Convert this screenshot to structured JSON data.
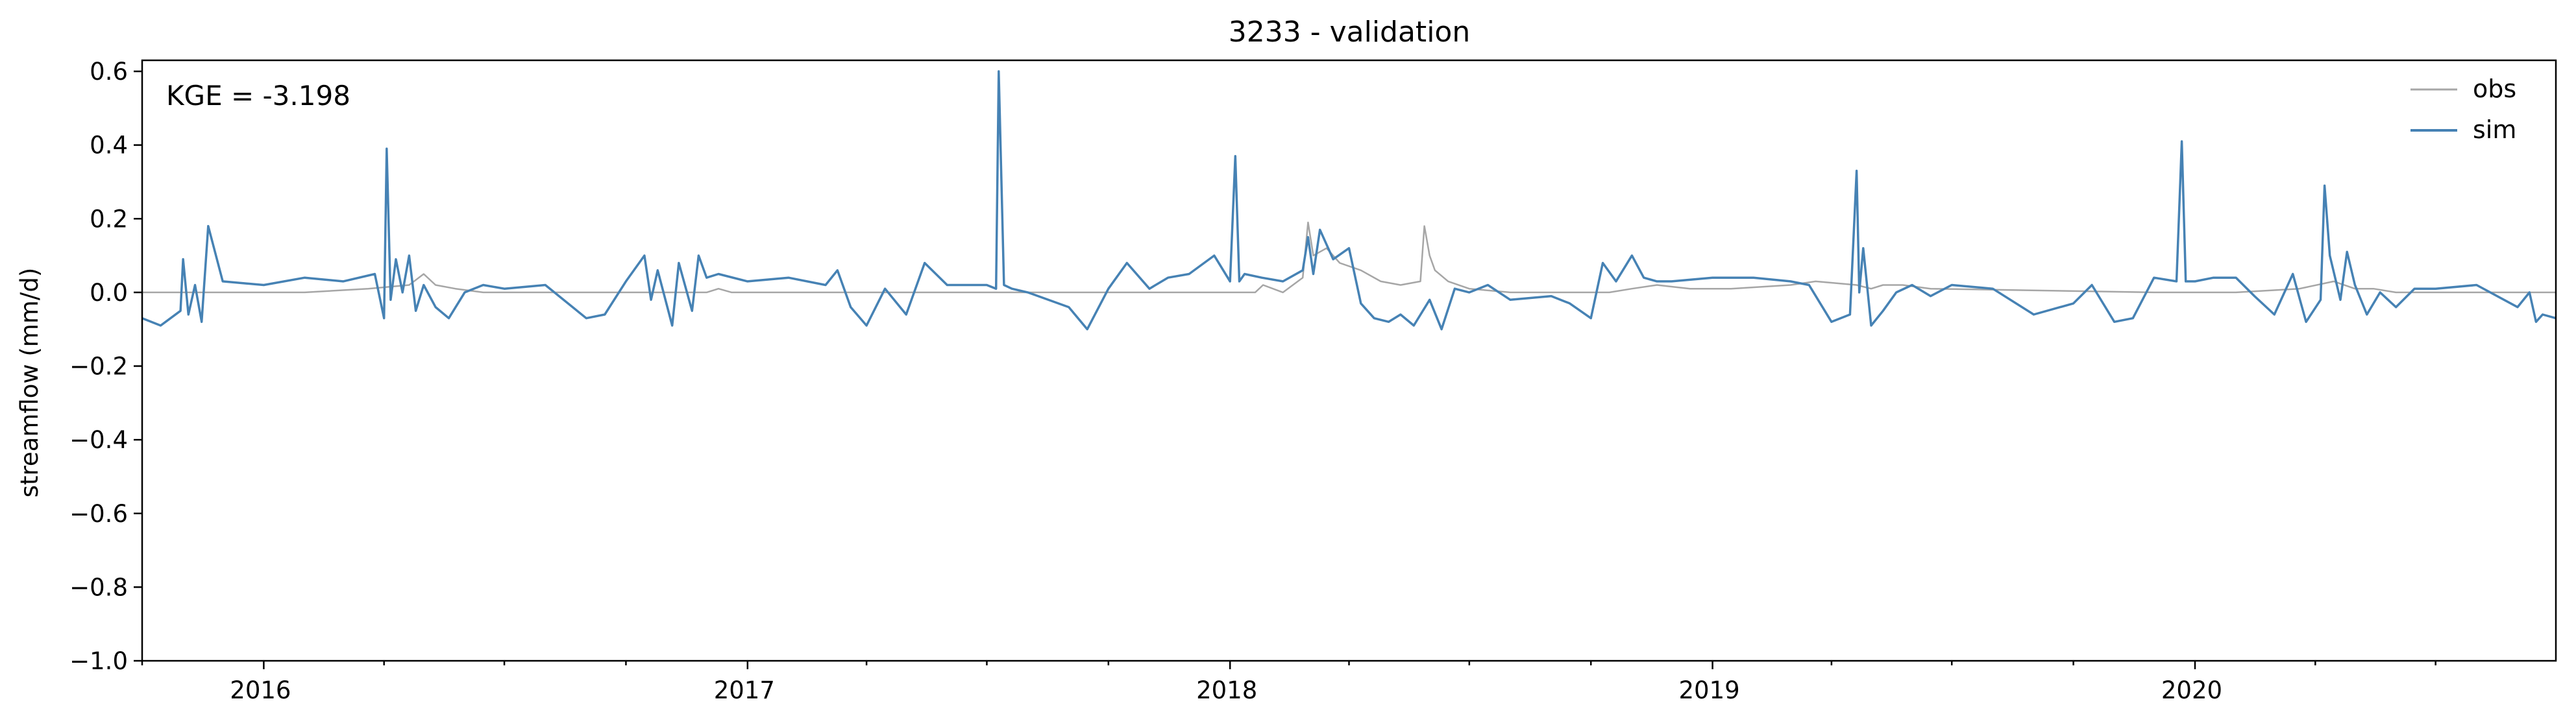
{
  "chart_data": {
    "type": "line",
    "title": "3233 - validation",
    "xlabel": "",
    "ylabel": "streamflow (mm/d)",
    "annotation": "KGE = -3.198",
    "xlim": [
      "2015-10-01",
      "2020-09-30"
    ],
    "ylim": [
      -1.0,
      0.63
    ],
    "yticks": [
      0.6,
      0.4,
      0.2,
      0.0,
      -0.2,
      -0.4,
      -0.6,
      -0.8,
      -1.0
    ],
    "ytick_labels": [
      "0.6",
      "0.4",
      "0.2",
      "0.0",
      "−0.2",
      "−0.4",
      "−0.6",
      "−0.8",
      "−1.0"
    ],
    "xticks": [
      "2016-01-01",
      "2017-01-01",
      "2018-01-01",
      "2019-01-01",
      "2020-01-01"
    ],
    "xtick_labels": [
      "2016",
      "2017",
      "2018",
      "2019",
      "2020"
    ],
    "legend_position": "top-right",
    "grid": false,
    "series": [
      {
        "name": "obs",
        "color": "#a6a6a6",
        "x": [
          "2015-10-01",
          "2016-02-01",
          "2016-03-20",
          "2016-04-20",
          "2016-05-01",
          "2016-05-10",
          "2016-05-25",
          "2016-06-15",
          "2016-12-01",
          "2016-12-10",
          "2016-12-20",
          "2017-06-01",
          "2017-11-01",
          "2018-01-20",
          "2018-01-26",
          "2018-02-10",
          "2018-02-25",
          "2018-03-01",
          "2018-03-05",
          "2018-03-15",
          "2018-03-25",
          "2018-04-10",
          "2018-04-25",
          "2018-05-10",
          "2018-05-25",
          "2018-05-28",
          "2018-06-01",
          "2018-06-05",
          "2018-06-15",
          "2018-07-01",
          "2018-08-01",
          "2018-10-15",
          "2018-11-01",
          "2018-11-20",
          "2018-12-15",
          "2019-01-15",
          "2019-03-01",
          "2019-03-20",
          "2019-04-20",
          "2019-05-01",
          "2019-05-10",
          "2019-05-25",
          "2019-06-15",
          "2019-12-01",
          "2020-02-01",
          "2020-03-20",
          "2020-04-15",
          "2020-05-01",
          "2020-05-15",
          "2020-06-01",
          "2020-09-30"
        ],
        "values": [
          0.0,
          0.0,
          0.01,
          0.02,
          0.05,
          0.02,
          0.01,
          0.0,
          0.0,
          0.01,
          0.0,
          0.0,
          0.0,
          0.0,
          0.02,
          0.0,
          0.04,
          0.19,
          0.1,
          0.12,
          0.08,
          0.06,
          0.03,
          0.02,
          0.03,
          0.18,
          0.1,
          0.06,
          0.03,
          0.01,
          0.0,
          0.0,
          0.01,
          0.02,
          0.01,
          0.01,
          0.02,
          0.03,
          0.02,
          0.01,
          0.02,
          0.02,
          0.01,
          0.0,
          0.0,
          0.01,
          0.03,
          0.01,
          0.01,
          0.0,
          0.0
        ]
      },
      {
        "name": "sim",
        "color": "#4682b4",
        "x": [
          "2015-10-01",
          "2015-10-15",
          "2015-10-30",
          "2015-11-01",
          "2015-11-05",
          "2015-11-10",
          "2015-11-15",
          "2015-11-20",
          "2015-12-01",
          "2016-01-01",
          "2016-02-01",
          "2016-03-01",
          "2016-03-25",
          "2016-04-01",
          "2016-04-03",
          "2016-04-06",
          "2016-04-10",
          "2016-04-15",
          "2016-04-20",
          "2016-04-25",
          "2016-05-01",
          "2016-05-10",
          "2016-05-20",
          "2016-06-01",
          "2016-06-15",
          "2016-07-01",
          "2016-08-01",
          "2016-09-01",
          "2016-09-15",
          "2016-10-01",
          "2016-10-15",
          "2016-10-20",
          "2016-10-25",
          "2016-11-05",
          "2016-11-10",
          "2016-11-20",
          "2016-11-25",
          "2016-12-01",
          "2016-12-10",
          "2017-01-01",
          "2017-02-01",
          "2017-03-01",
          "2017-03-10",
          "2017-03-20",
          "2017-04-01",
          "2017-04-15",
          "2017-05-01",
          "2017-05-15",
          "2017-06-01",
          "2017-07-01",
          "2017-07-08",
          "2017-07-10",
          "2017-07-14",
          "2017-07-20",
          "2017-08-01",
          "2017-09-01",
          "2017-09-15",
          "2017-10-01",
          "2017-10-15",
          "2017-11-01",
          "2017-11-15",
          "2017-12-01",
          "2017-12-20",
          "2018-01-01",
          "2018-01-05",
          "2018-01-08",
          "2018-01-12",
          "2018-01-25",
          "2018-02-10",
          "2018-02-25",
          "2018-03-01",
          "2018-03-05",
          "2018-03-10",
          "2018-03-20",
          "2018-04-01",
          "2018-04-10",
          "2018-04-20",
          "2018-05-01",
          "2018-05-10",
          "2018-05-20",
          "2018-06-01",
          "2018-06-10",
          "2018-06-20",
          "2018-07-01",
          "2018-07-15",
          "2018-08-01",
          "2018-09-01",
          "2018-09-15",
          "2018-10-01",
          "2018-10-10",
          "2018-10-20",
          "2018-11-01",
          "2018-11-10",
          "2018-11-20",
          "2018-12-01",
          "2019-01-01",
          "2019-02-01",
          "2019-03-01",
          "2019-03-15",
          "2019-04-01",
          "2019-04-15",
          "2019-04-20",
          "2019-04-22",
          "2019-04-25",
          "2019-05-01",
          "2019-05-10",
          "2019-05-20",
          "2019-06-01",
          "2019-06-15",
          "2019-07-01",
          "2019-08-01",
          "2019-09-01",
          "2019-10-01",
          "2019-10-15",
          "2019-11-01",
          "2019-11-15",
          "2019-12-01",
          "2019-12-18",
          "2019-12-22",
          "2019-12-25",
          "2020-01-01",
          "2020-01-15",
          "2020-02-01",
          "2020-02-15",
          "2020-03-01",
          "2020-03-15",
          "2020-03-25",
          "2020-04-05",
          "2020-04-08",
          "2020-04-12",
          "2020-04-20",
          "2020-04-25",
          "2020-05-01",
          "2020-05-10",
          "2020-05-20",
          "2020-06-01",
          "2020-06-15",
          "2020-07-01",
          "2020-08-01",
          "2020-09-01",
          "2020-09-10",
          "2020-09-15",
          "2020-09-20",
          "2020-09-30"
        ],
        "values": [
          -0.07,
          -0.09,
          -0.05,
          0.09,
          -0.06,
          0.02,
          -0.08,
          0.18,
          0.03,
          0.02,
          0.04,
          0.03,
          0.05,
          -0.07,
          0.39,
          -0.02,
          0.09,
          0.0,
          0.1,
          -0.05,
          0.02,
          -0.04,
          -0.07,
          0.0,
          0.02,
          0.01,
          0.02,
          -0.07,
          -0.06,
          0.03,
          0.1,
          -0.02,
          0.06,
          -0.09,
          0.08,
          -0.05,
          0.1,
          0.04,
          0.05,
          0.03,
          0.04,
          0.02,
          0.06,
          -0.04,
          -0.09,
          0.01,
          -0.06,
          0.08,
          0.02,
          0.02,
          0.01,
          0.6,
          0.02,
          0.01,
          0.0,
          -0.04,
          -0.1,
          0.01,
          0.08,
          0.01,
          0.04,
          0.05,
          0.1,
          0.03,
          0.37,
          0.03,
          0.05,
          0.04,
          0.03,
          0.06,
          0.15,
          0.05,
          0.17,
          0.09,
          0.12,
          -0.03,
          -0.07,
          -0.08,
          -0.06,
          -0.09,
          -0.02,
          -0.1,
          0.01,
          0.0,
          0.02,
          -0.02,
          -0.01,
          -0.03,
          -0.07,
          0.08,
          0.03,
          0.1,
          0.04,
          0.03,
          0.03,
          0.04,
          0.04,
          0.03,
          0.02,
          -0.08,
          -0.06,
          0.33,
          0.0,
          0.12,
          -0.09,
          -0.05,
          0.0,
          0.02,
          -0.01,
          0.02,
          0.01,
          -0.06,
          -0.03,
          0.02,
          -0.08,
          -0.07,
          0.04,
          0.03,
          0.41,
          0.03,
          0.03,
          0.04,
          0.04,
          -0.01,
          -0.06,
          0.05,
          -0.08,
          -0.02,
          0.29,
          0.1,
          -0.02,
          0.11,
          0.02,
          -0.06,
          0.0,
          -0.04,
          0.01,
          0.01,
          0.02,
          -0.04,
          0.0,
          -0.08,
          -0.06,
          -0.07
        ]
      }
    ]
  }
}
